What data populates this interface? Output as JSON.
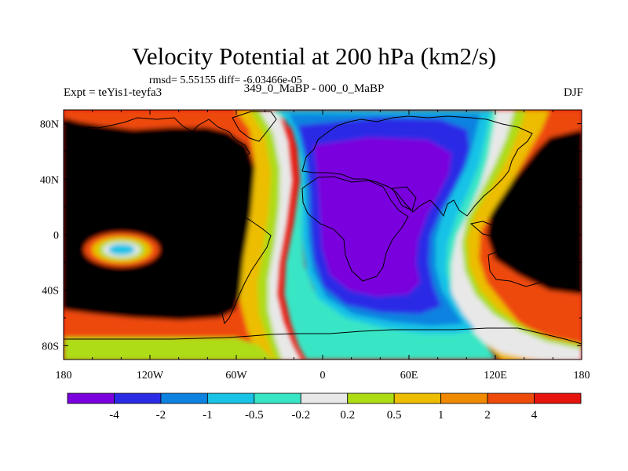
{
  "header": {
    "title": "Velocity Potential at 200 hPa (km2/s)",
    "stats": "rmsd= 5.55155 diff= -6.03466e-05",
    "experiment": "Expt = teYis1-teyfa3",
    "period": "349_0_MaBP - 000_0_MaBP",
    "season": "DJF"
  },
  "chart_data": {
    "type": "heatmap",
    "title": "Velocity Potential at 200 hPa (km2/s)",
    "projection": "cylindrical-equidistant",
    "xlim": [
      -180,
      180
    ],
    "ylim": [
      -90,
      90
    ],
    "x_ticks": [
      {
        "value": -180,
        "label": "180"
      },
      {
        "value": -120,
        "label": "120W"
      },
      {
        "value": -60,
        "label": "60W"
      },
      {
        "value": 0,
        "label": "0"
      },
      {
        "value": 60,
        "label": "60E"
      },
      {
        "value": 120,
        "label": "120E"
      },
      {
        "value": 180,
        "label": "180"
      }
    ],
    "y_ticks": [
      {
        "value": 80,
        "label": "80N"
      },
      {
        "value": 40,
        "label": "40N"
      },
      {
        "value": 0,
        "label": "0"
      },
      {
        "value": -40,
        "label": "40S"
      },
      {
        "value": -80,
        "label": "80S"
      }
    ],
    "colorbar": {
      "levels": [
        "-4",
        "-2",
        "-1",
        "-0.5",
        "-0.2",
        "0.2",
        "0.5",
        "1",
        "2",
        "4"
      ],
      "colors": [
        "#7a00dd",
        "#2b2be6",
        "#0e82e0",
        "#18c3e6",
        "#38e6c6",
        "#e8e8e8",
        "#aedc14",
        "#ecbd00",
        "#f08a00",
        "#ee4a0a",
        "#e6140c"
      ]
    },
    "features": [
      {
        "name": "Pacific maximum",
        "level_index": 10,
        "lon": [
          -180,
          -20
        ],
        "lat": [
          -55,
          82
        ]
      },
      {
        "name": "Pacific secondary high",
        "level_index": 10,
        "lon": [
          140,
          180
        ],
        "lat": [
          -40,
          60
        ]
      },
      {
        "name": "Atlantic-Africa minimum",
        "level_index": 0,
        "lon": [
          -10,
          80
        ],
        "lat": [
          -52,
          62
        ]
      },
      {
        "name": "Local minimum near equator",
        "level_index": 4,
        "lon": [
          -152,
          -138
        ],
        "lat": [
          -15,
          -8
        ]
      }
    ]
  }
}
